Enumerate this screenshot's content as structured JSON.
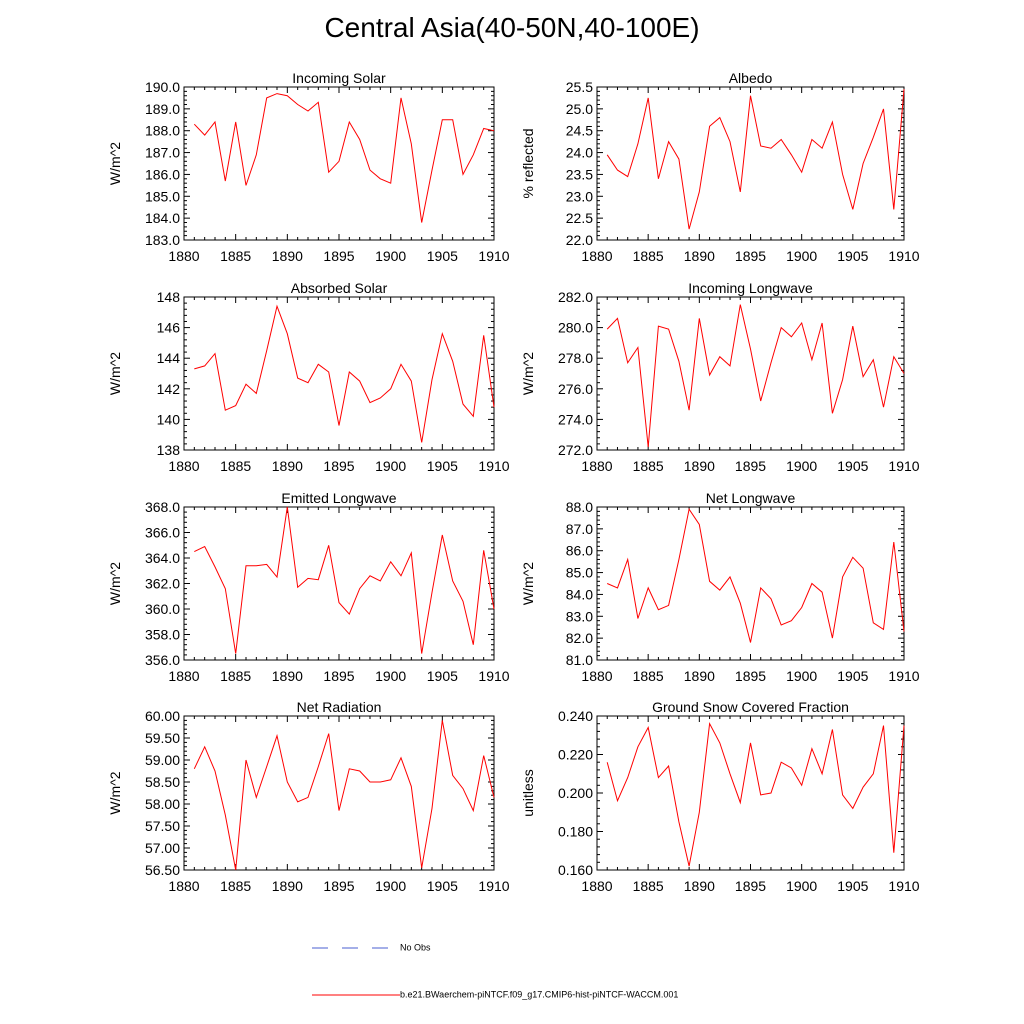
{
  "title": "Central Asia(40-50N,40-100E)",
  "legend": {
    "entries": [
      {
        "label": "No Obs",
        "color": "#4a5fd0",
        "style": "dashed"
      },
      {
        "label": "b.e21.BWaerchem-piNTCF.f09_g17.CMIP6-hist-piNTCF-WACCM.001",
        "color": "#ff0000",
        "style": "solid"
      }
    ]
  },
  "chart_data": [
    {
      "type": "line",
      "title": "Incoming Solar",
      "ylabel": "W/m^2",
      "xlim": [
        1880,
        1910
      ],
      "ylim": [
        183.0,
        190.0
      ],
      "xticks": [
        1880,
        1885,
        1890,
        1895,
        1900,
        1905,
        1910
      ],
      "yticks": [
        "183.0",
        "184.0",
        "185.0",
        "186.0",
        "187.0",
        "188.0",
        "189.0",
        "190.0"
      ],
      "x": [
        1881,
        1882,
        1883,
        1884,
        1885,
        1886,
        1887,
        1888,
        1889,
        1890,
        1891,
        1892,
        1893,
        1894,
        1895,
        1896,
        1897,
        1898,
        1899,
        1900,
        1901,
        1902,
        1903,
        1904,
        1905,
        1906,
        1907,
        1908,
        1909,
        1910
      ],
      "series": [
        {
          "values": [
            188.3,
            187.8,
            188.4,
            185.7,
            188.4,
            185.5,
            186.9,
            189.5,
            189.7,
            189.6,
            189.2,
            188.9,
            189.3,
            186.1,
            186.6,
            188.4,
            187.6,
            186.2,
            185.8,
            185.6,
            189.5,
            187.4,
            183.8,
            186.2,
            188.5,
            188.5,
            186.0,
            186.9,
            188.1,
            188.0
          ]
        }
      ]
    },
    {
      "type": "line",
      "title": "Albedo",
      "ylabel": "% reflected",
      "xlim": [
        1880,
        1910
      ],
      "ylim": [
        22.0,
        25.5
      ],
      "xticks": [
        1880,
        1885,
        1890,
        1895,
        1900,
        1905,
        1910
      ],
      "yticks": [
        "22.0",
        "22.5",
        "23.0",
        "23.5",
        "24.0",
        "24.5",
        "25.0",
        "25.5"
      ],
      "x": [
        1881,
        1882,
        1883,
        1884,
        1885,
        1886,
        1887,
        1888,
        1889,
        1890,
        1891,
        1892,
        1893,
        1894,
        1895,
        1896,
        1897,
        1898,
        1899,
        1900,
        1901,
        1902,
        1903,
        1904,
        1905,
        1906,
        1907,
        1908,
        1909,
        1910
      ],
      "series": [
        {
          "values": [
            23.95,
            23.6,
            23.45,
            24.2,
            25.25,
            23.4,
            24.25,
            23.85,
            22.25,
            23.1,
            24.6,
            24.8,
            24.25,
            23.1,
            25.3,
            24.15,
            24.1,
            24.3,
            23.95,
            23.55,
            24.3,
            24.1,
            24.7,
            23.5,
            22.7,
            23.75,
            24.35,
            25.0,
            22.7,
            25.45
          ]
        }
      ]
    },
    {
      "type": "line",
      "title": "Absorbed Solar",
      "ylabel": "W/m^2",
      "xlim": [
        1880,
        1910
      ],
      "ylim": [
        138,
        148
      ],
      "xticks": [
        1880,
        1885,
        1890,
        1895,
        1900,
        1905,
        1910
      ],
      "yticks": [
        "138",
        "140",
        "142",
        "144",
        "146",
        "148"
      ],
      "x": [
        1881,
        1882,
        1883,
        1884,
        1885,
        1886,
        1887,
        1888,
        1889,
        1890,
        1891,
        1892,
        1893,
        1894,
        1895,
        1896,
        1897,
        1898,
        1899,
        1900,
        1901,
        1902,
        1903,
        1904,
        1905,
        1906,
        1907,
        1908,
        1909,
        1910
      ],
      "series": [
        {
          "values": [
            143.3,
            143.5,
            144.3,
            140.6,
            140.9,
            142.3,
            141.7,
            144.5,
            147.4,
            145.6,
            142.7,
            142.4,
            143.6,
            143.1,
            139.6,
            143.1,
            142.5,
            141.1,
            141.4,
            142.0,
            143.6,
            142.5,
            138.5,
            142.6,
            145.6,
            143.8,
            141.0,
            140.2,
            145.5,
            140.8
          ]
        }
      ]
    },
    {
      "type": "line",
      "title": "Incoming Longwave",
      "ylabel": "W/m^2",
      "xlim": [
        1880,
        1910
      ],
      "ylim": [
        272.0,
        282.0
      ],
      "xticks": [
        1880,
        1885,
        1890,
        1895,
        1900,
        1905,
        1910
      ],
      "yticks": [
        "272.0",
        "274.0",
        "276.0",
        "278.0",
        "280.0",
        "282.0"
      ],
      "x": [
        1881,
        1882,
        1883,
        1884,
        1885,
        1886,
        1887,
        1888,
        1889,
        1890,
        1891,
        1892,
        1893,
        1894,
        1895,
        1896,
        1897,
        1898,
        1899,
        1900,
        1901,
        1902,
        1903,
        1904,
        1905,
        1906,
        1907,
        1908,
        1909,
        1910
      ],
      "series": [
        {
          "values": [
            279.9,
            280.6,
            277.7,
            278.7,
            272.2,
            280.1,
            279.9,
            277.8,
            274.6,
            280.6,
            276.9,
            278.1,
            277.5,
            281.5,
            278.6,
            275.2,
            277.7,
            280.0,
            279.4,
            280.3,
            277.9,
            280.3,
            274.4,
            276.6,
            280.1,
            276.8,
            277.9,
            274.8,
            278.1,
            277.0
          ]
        }
      ]
    },
    {
      "type": "line",
      "title": "Emitted Longwave",
      "ylabel": "W/m^2",
      "xlim": [
        1880,
        1910
      ],
      "ylim": [
        356.0,
        368.0
      ],
      "xticks": [
        1880,
        1885,
        1890,
        1895,
        1900,
        1905,
        1910
      ],
      "yticks": [
        "356.0",
        "358.0",
        "360.0",
        "362.0",
        "364.0",
        "366.0",
        "368.0"
      ],
      "x": [
        1881,
        1882,
        1883,
        1884,
        1885,
        1886,
        1887,
        1888,
        1889,
        1890,
        1891,
        1892,
        1893,
        1894,
        1895,
        1896,
        1897,
        1898,
        1899,
        1900,
        1901,
        1902,
        1903,
        1904,
        1905,
        1906,
        1907,
        1908,
        1909,
        1910
      ],
      "series": [
        {
          "values": [
            364.5,
            364.9,
            363.3,
            361.6,
            356.5,
            363.4,
            363.4,
            363.5,
            362.5,
            368.0,
            361.7,
            362.4,
            362.3,
            365.0,
            360.5,
            359.6,
            361.6,
            362.6,
            362.2,
            363.7,
            362.6,
            364.4,
            356.5,
            361.3,
            365.8,
            362.2,
            360.6,
            357.2,
            364.6,
            360.0
          ]
        }
      ]
    },
    {
      "type": "line",
      "title": "Net Longwave",
      "ylabel": "W/m^2",
      "xlim": [
        1880,
        1910
      ],
      "ylim": [
        81.0,
        88.0
      ],
      "xticks": [
        1880,
        1885,
        1890,
        1895,
        1900,
        1905,
        1910
      ],
      "yticks": [
        "81.0",
        "82.0",
        "83.0",
        "84.0",
        "85.0",
        "86.0",
        "87.0",
        "88.0"
      ],
      "x": [
        1881,
        1882,
        1883,
        1884,
        1885,
        1886,
        1887,
        1888,
        1889,
        1890,
        1891,
        1892,
        1893,
        1894,
        1895,
        1896,
        1897,
        1898,
        1899,
        1900,
        1901,
        1902,
        1903,
        1904,
        1905,
        1906,
        1907,
        1908,
        1909,
        1910
      ],
      "series": [
        {
          "values": [
            84.5,
            84.3,
            85.6,
            82.9,
            84.3,
            83.3,
            83.5,
            85.6,
            87.9,
            87.2,
            84.6,
            84.2,
            84.8,
            83.6,
            81.8,
            84.3,
            83.8,
            82.6,
            82.8,
            83.4,
            84.5,
            84.1,
            82.0,
            84.8,
            85.7,
            85.2,
            82.7,
            82.4,
            86.4,
            82.3
          ]
        }
      ]
    },
    {
      "type": "line",
      "title": "Net Radiation",
      "ylabel": "W/m^2",
      "xlim": [
        1880,
        1910
      ],
      "ylim": [
        56.5,
        60.0
      ],
      "xticks": [
        1880,
        1885,
        1890,
        1895,
        1900,
        1905,
        1910
      ],
      "yticks": [
        "56.50",
        "57.00",
        "57.50",
        "58.00",
        "58.50",
        "59.00",
        "59.50",
        "60.00"
      ],
      "x": [
        1881,
        1882,
        1883,
        1884,
        1885,
        1886,
        1887,
        1888,
        1889,
        1890,
        1891,
        1892,
        1893,
        1894,
        1895,
        1896,
        1897,
        1898,
        1899,
        1900,
        1901,
        1902,
        1903,
        1904,
        1905,
        1906,
        1907,
        1908,
        1909,
        1910
      ],
      "series": [
        {
          "values": [
            58.8,
            59.3,
            58.75,
            57.75,
            56.5,
            59.0,
            58.15,
            58.85,
            59.55,
            58.5,
            58.05,
            58.15,
            58.85,
            59.6,
            57.85,
            58.8,
            58.75,
            58.5,
            58.5,
            58.55,
            59.05,
            58.4,
            56.55,
            57.9,
            59.9,
            58.65,
            58.35,
            57.85,
            59.1,
            58.15
          ]
        }
      ]
    },
    {
      "type": "line",
      "title": "Ground Snow Covered Fraction",
      "ylabel": "unitless",
      "xlim": [
        1880,
        1910
      ],
      "ylim": [
        0.16,
        0.24
      ],
      "xticks": [
        1880,
        1885,
        1890,
        1895,
        1900,
        1905,
        1910
      ],
      "yticks": [
        "0.160",
        "0.180",
        "0.200",
        "0.220",
        "0.240"
      ],
      "x": [
        1881,
        1882,
        1883,
        1884,
        1885,
        1886,
        1887,
        1888,
        1889,
        1890,
        1891,
        1892,
        1893,
        1894,
        1895,
        1896,
        1897,
        1898,
        1899,
        1900,
        1901,
        1902,
        1903,
        1904,
        1905,
        1906,
        1907,
        1908,
        1909,
        1910
      ],
      "series": [
        {
          "values": [
            0.216,
            0.196,
            0.208,
            0.224,
            0.234,
            0.208,
            0.214,
            0.185,
            0.162,
            0.19,
            0.236,
            0.226,
            0.21,
            0.195,
            0.226,
            0.199,
            0.2,
            0.216,
            0.213,
            0.204,
            0.223,
            0.21,
            0.233,
            0.199,
            0.192,
            0.203,
            0.21,
            0.235,
            0.169,
            0.235
          ]
        }
      ]
    }
  ]
}
